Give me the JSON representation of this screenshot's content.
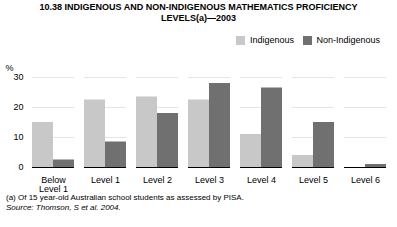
{
  "chart_data": {
    "type": "bar",
    "title": "10.38   INDIGENOUS AND NON-INDIGENOUS MATHEMATICS PROFICIENCY\nLEVELS(a)—2003",
    "categories": [
      "Below\nLevel 1",
      "Level 1",
      "Level 2",
      "Level 3",
      "Level 4",
      "Level 5",
      "Level 6"
    ],
    "series": [
      {
        "name": "Indigenous",
        "color": "#c8c8c8",
        "values": [
          15,
          22.5,
          23.5,
          22.5,
          11,
          4,
          0
        ]
      },
      {
        "name": "Non-Indigenous",
        "color": "#707070",
        "values": [
          2.5,
          8.5,
          18,
          28,
          26.5,
          15,
          1
        ]
      }
    ],
    "ylabel": "%",
    "ylim": [
      0,
      30
    ],
    "yticks": [
      0,
      10,
      20,
      30
    ],
    "grid": true,
    "legend": "upper right",
    "annotations": [
      "(a) Of 15 year-old Australian school students as assessed by PISA.",
      "Source: Thomson, S et al. 2004."
    ]
  }
}
